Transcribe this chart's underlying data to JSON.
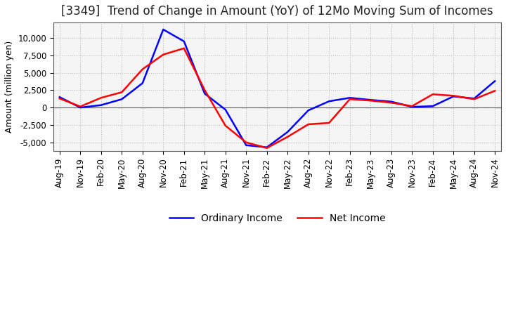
{
  "title": "[3349]  Trend of Change in Amount (YoY) of 12Mo Moving Sum of Incomes",
  "ylabel": "Amount (million yen)",
  "x_labels": [
    "Aug-19",
    "Nov-19",
    "Feb-20",
    "May-20",
    "Aug-20",
    "Nov-20",
    "Feb-21",
    "May-21",
    "Aug-21",
    "Nov-21",
    "Feb-22",
    "May-22",
    "Aug-22",
    "Nov-22",
    "Feb-23",
    "May-23",
    "Aug-23",
    "Nov-23",
    "Feb-24",
    "May-24",
    "Aug-24",
    "Nov-24"
  ],
  "ordinary_income": [
    1500,
    0,
    350,
    1200,
    3500,
    11200,
    9500,
    2000,
    -300,
    -5400,
    -5700,
    -3500,
    -400,
    900,
    1400,
    1100,
    850,
    100,
    200,
    1600,
    1300,
    3800
  ],
  "net_income": [
    1300,
    150,
    1400,
    2200,
    5500,
    7600,
    8500,
    2500,
    -2600,
    -5000,
    -5800,
    -4200,
    -2400,
    -2200,
    1200,
    1000,
    700,
    200,
    1900,
    1700,
    1200,
    2400
  ],
  "ordinary_color": "#0000ff",
  "net_color": "#ff0000",
  "ylim": [
    -6200,
    12200
  ],
  "yticks": [
    -5000,
    -2500,
    0,
    2500,
    5000,
    7500,
    10000
  ],
  "plot_bg_color": "#f5f5f5",
  "background_color": "#ffffff",
  "grid_color": "#bbbbbb",
  "legend_ordinary": "Ordinary Income",
  "legend_net": "Net Income",
  "line_width": 1.8,
  "title_fontsize": 12,
  "ylabel_fontsize": 9,
  "tick_fontsize": 8.5
}
